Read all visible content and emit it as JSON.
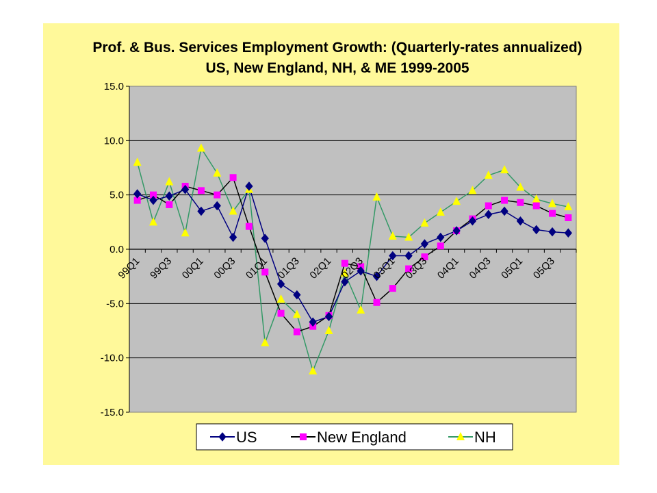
{
  "colors": {
    "background": "#fff99a",
    "plot_area": "#c0c0c0",
    "US": "#000080",
    "New England": "#ff00ff",
    "NH": "#ffff00",
    "NE_line": "#000000",
    "NH_line": "#339966"
  },
  "chart_data": {
    "type": "line",
    "title": "Prof. & Bus. Services Employment Growth: (Quarterly-rates annualized)",
    "subtitle": "US, New England, NH, & ME 1999-2005",
    "xlabel": "",
    "ylabel": "",
    "ylim": [
      -15,
      15
    ],
    "y_ticks": [
      "15.0",
      "10.0",
      "5.0",
      "0.0",
      "-5.0",
      "-10.0",
      "-15.0"
    ],
    "y_tick_values": [
      15,
      10,
      5,
      0,
      -5,
      -10,
      -15
    ],
    "x_tick_labels": [
      "99Q1",
      "99Q3",
      "00Q1",
      "00Q3",
      "01Q1",
      "01Q3",
      "02Q1",
      "02Q3",
      "03Q1",
      "03Q3",
      "04Q1",
      "04Q3",
      "05Q1",
      "05Q3"
    ],
    "x_tick_positions": [
      0,
      2,
      4,
      6,
      8,
      10,
      12,
      14,
      16,
      18,
      20,
      22,
      24,
      26
    ],
    "categories": [
      "99Q1",
      "99Q2",
      "99Q3",
      "99Q4",
      "00Q1",
      "00Q2",
      "00Q3",
      "00Q4",
      "01Q1",
      "01Q2",
      "01Q3",
      "01Q4",
      "02Q1",
      "02Q2",
      "02Q3",
      "02Q4",
      "03Q1",
      "03Q2",
      "03Q3",
      "03Q4",
      "04Q1",
      "04Q2",
      "04Q3",
      "04Q4",
      "05Q1",
      "05Q2",
      "05Q3",
      "05Q4"
    ],
    "grid": true,
    "legend_position": "bottom",
    "series": [
      {
        "name": "US",
        "marker": "diamond",
        "values": [
          5.1,
          4.5,
          4.9,
          5.5,
          3.5,
          4.0,
          1.1,
          5.8,
          1.0,
          -3.2,
          -4.2,
          -6.7,
          -6.2,
          -3.0,
          -2.0,
          -2.5,
          -0.6,
          -0.6,
          0.5,
          1.1,
          1.7,
          2.6,
          3.2,
          3.5,
          2.6,
          1.8,
          1.6,
          1.5
        ]
      },
      {
        "name": "New England",
        "marker": "square",
        "values": [
          4.5,
          5.0,
          4.1,
          5.8,
          5.4,
          5.0,
          6.6,
          2.1,
          -2.1,
          -5.9,
          -7.6,
          -7.1,
          -6.1,
          -1.3,
          -1.6,
          -4.9,
          -3.6,
          -1.8,
          -0.7,
          0.3,
          1.7,
          2.8,
          4.0,
          4.5,
          4.3,
          4.0,
          3.3,
          2.9
        ]
      },
      {
        "name": "NH",
        "marker": "triangle",
        "values": [
          8.0,
          2.5,
          6.2,
          1.5,
          9.3,
          7.0,
          3.5,
          5.5,
          -8.6,
          -4.6,
          -6.0,
          -11.2,
          -7.5,
          -2.2,
          -5.6,
          4.8,
          1.2,
          1.1,
          2.4,
          3.4,
          4.4,
          5.4,
          6.8,
          7.3,
          5.7,
          4.6,
          4.2,
          3.9
        ]
      }
    ]
  }
}
